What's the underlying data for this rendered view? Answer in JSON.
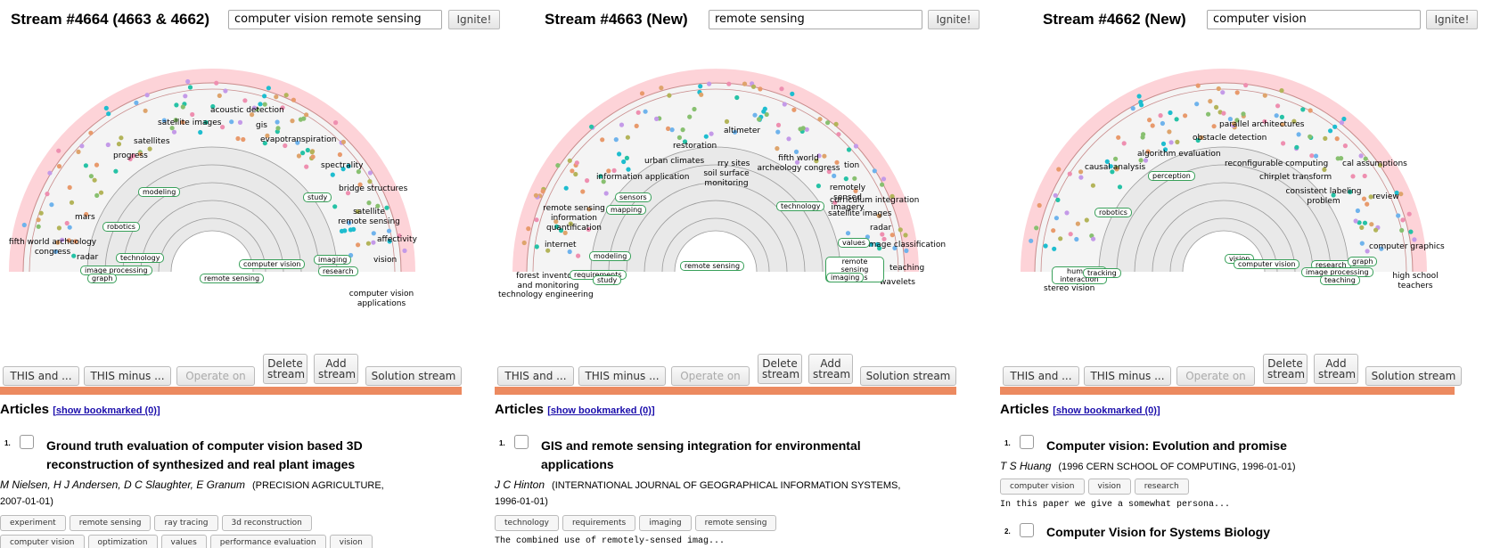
{
  "columns": [
    {
      "title": "Stream #4664 (4663 & 4662)",
      "query": "computer vision remote sensing",
      "ignite_label": "Ignite!",
      "tags": [
        {
          "text": "acoustic detection",
          "color": "#ef8fb2"
        },
        {
          "text": "satellite images",
          "color": "#dea46c"
        },
        {
          "text": "gis",
          "color": "#6fb3ec"
        },
        {
          "text": "satellites",
          "color": "#88c070"
        },
        {
          "text": "evapotranspiration",
          "color": "#1ebdcf"
        },
        {
          "text": "progress",
          "color": "#1ebdcf"
        },
        {
          "text": "spectrality",
          "color": "#b3b45a"
        },
        {
          "text": "bridge structures",
          "color": "#ef9090"
        },
        {
          "text": "satellite remote sensing",
          "color": "#c49ae8"
        },
        {
          "text": "mars",
          "color": "#c49ae8"
        },
        {
          "text": "fifth world archeology congress",
          "color": "#ef7f84"
        },
        {
          "text": "radar",
          "color": "#dea46c"
        },
        {
          "text": "affectivity",
          "color": "#1ebdcf"
        },
        {
          "text": "vision",
          "color": "#7ecf70"
        },
        {
          "text": "computer vision applications",
          "color": "#d8a55e"
        }
      ],
      "out_tags": [
        "modeling",
        "robotics",
        "technology",
        "image processing",
        "graph",
        "study",
        "computer vision",
        "imaging",
        "research",
        "remote sensing"
      ],
      "ops": {
        "this_and": "THIS and ...",
        "this_minus": "THIS minus ...",
        "operate_on": "Operate on",
        "delete_stream": "Delete stream",
        "add_stream": "Add stream",
        "solution_stream": "Solution stream"
      },
      "articles_label": "Articles",
      "bookmarked_label": "show bookmarked (0)",
      "articles": [
        {
          "num": "1.",
          "title": "Ground truth evaluation of computer vision based 3D reconstruction of synthesized and real plant images",
          "authors": "M Nielsen, H J Andersen, D C Slaughter, E Granum",
          "venue": "(PRECISION AGRICULTURE,",
          "date": "2007-01-01)",
          "keywords": [
            "experiment",
            "remote sensing",
            "ray tracing",
            "3d reconstruction",
            "computer vision",
            "optimization",
            "values",
            "performance evaluation",
            "vision"
          ]
        }
      ]
    },
    {
      "title": "Stream #4663 (New)",
      "query": "remote sensing",
      "ignite_label": "Ignite!",
      "tags": [
        {
          "text": "altimeter",
          "color": "#dea46c"
        },
        {
          "text": "restoration",
          "color": "#1ebdcf"
        },
        {
          "text": "fifth world archeology congress",
          "color": "#ef8fb2"
        },
        {
          "text": "urban climates",
          "color": "#ef9090"
        },
        {
          "text": "rry sites",
          "color": "#c49ae8"
        },
        {
          "text": "tion",
          "color": "#1ebdcf"
        },
        {
          "text": "information application",
          "color": "#dea46c"
        },
        {
          "text": "soil surface monitoring",
          "color": "#88c070"
        },
        {
          "text": "remotely sensed imagery",
          "color": "#26c2a6"
        },
        {
          "text": "curriculum integration",
          "color": "#b3b45a"
        },
        {
          "text": "remote sensing information quantification",
          "color": "#26c2a6"
        },
        {
          "text": "satellite images",
          "color": "#ef9090"
        },
        {
          "text": "radar",
          "color": "#c49ae8"
        },
        {
          "text": "internet",
          "color": "#c49ae8"
        },
        {
          "text": "image classification",
          "color": "#1ebdcf"
        },
        {
          "text": "forest inventory and monitoring",
          "color": "#ef9a6c"
        },
        {
          "text": "teaching",
          "color": "#7ecf70"
        },
        {
          "text": "technology engineering",
          "color": "#b3b45a"
        },
        {
          "text": "wavelets",
          "color": "#dea46c"
        }
      ],
      "out_tags": [
        "sensors",
        "mapping",
        "technology",
        "modeling",
        "requirements",
        "study",
        "remote sensing",
        "values",
        "remote sensing images",
        "imaging"
      ],
      "ops": {
        "this_and": "THIS and ...",
        "this_minus": "THIS minus ...",
        "operate_on": "Operate on",
        "delete_stream": "Delete stream",
        "add_stream": "Add stream",
        "solution_stream": "Solution stream"
      },
      "articles_label": "Articles",
      "bookmarked_label": "show bookmarked (0)",
      "articles": [
        {
          "num": "1.",
          "title": "GIS and remote sensing integration for environmental applications",
          "authors": "J C Hinton",
          "venue": "(INTERNATIONAL JOURNAL OF GEOGRAPHICAL INFORMATION SYSTEMS,",
          "date": "1996-01-01)",
          "keywords": [
            "technology",
            "requirements",
            "imaging",
            "remote sensing"
          ],
          "snippet": "The combined use of remotely-sensed imag..."
        }
      ]
    },
    {
      "title": "Stream #4662 (New)",
      "query": "computer vision",
      "ignite_label": "Ignite!",
      "tags": [
        {
          "text": "parallel architectures",
          "color": "#6fb3ec"
        },
        {
          "text": "obstacle detection",
          "color": "#ef8fb2"
        },
        {
          "text": "algorithm evaluation",
          "color": "#ef9a6c"
        },
        {
          "text": "causal analysis",
          "color": "#88c070"
        },
        {
          "text": "reconfigurable computing",
          "color": "#26c2a6"
        },
        {
          "text": "cal assumptions",
          "color": "#c49ae8"
        },
        {
          "text": "chirplet transform",
          "color": "#dea46c"
        },
        {
          "text": "consistent labeling problem",
          "color": "#ef7f84"
        },
        {
          "text": "review",
          "color": "#1ebdcf"
        },
        {
          "text": "computer graphics",
          "color": "#7ecf70"
        },
        {
          "text": "stereo vision",
          "color": "#1ebdcf"
        },
        {
          "text": "high school teachers",
          "color": "#d8a55e"
        }
      ],
      "out_tags": [
        "perception",
        "robotics",
        "human interaction",
        "tracking",
        "vision",
        "computer vision",
        "research",
        "graph",
        "image processing",
        "teaching"
      ],
      "ops": {
        "this_and": "THIS and ...",
        "this_minus": "THIS minus ...",
        "operate_on": "Operate on",
        "delete_stream": "Delete stream",
        "add_stream": "Add stream",
        "solution_stream": "Solution stream"
      },
      "articles_label": "Articles",
      "bookmarked_label": "show bookmarked (0)",
      "articles": [
        {
          "num": "1.",
          "title": "Computer vision: Evolution and promise",
          "authors": "T S Huang",
          "venue": "(1996 CERN SCHOOL OF COMPUTING, 1996-01-01)",
          "keywords": [
            "computer vision",
            "vision",
            "research"
          ],
          "snippet": "In this paper we give a somewhat persona..."
        },
        {
          "num": "2.",
          "title": "Computer Vision for Systems Biology"
        }
      ]
    }
  ],
  "dot_colors": [
    "#e89a6c",
    "#ee8fb0",
    "#c49ae8",
    "#88c070",
    "#1ebdcf",
    "#dea46c",
    "#6fb3ec",
    "#b3b45a",
    "#26c2a6"
  ]
}
